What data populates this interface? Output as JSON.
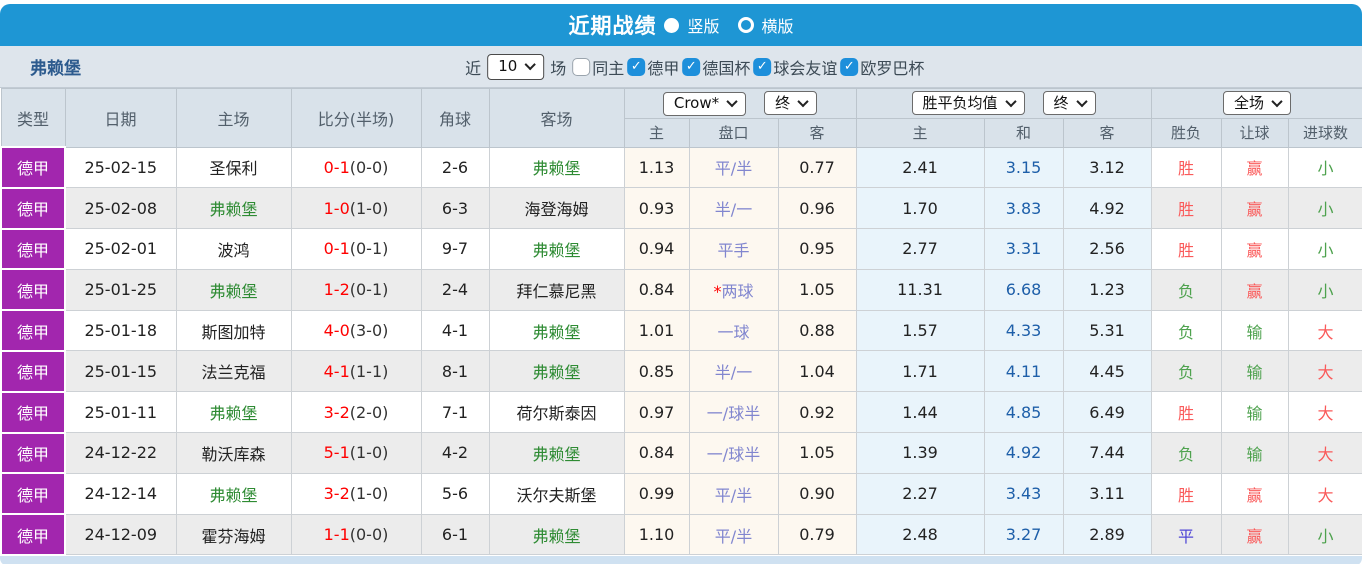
{
  "title_bar": {
    "title": "近期战绩",
    "radio_vertical": "竖版",
    "radio_horizontal": "横版",
    "vertical_selected": true
  },
  "filter_bar": {
    "team": "弗赖堡",
    "recent_label": "近",
    "recent_value": "10",
    "games_label": "场",
    "checkboxes": [
      {
        "key": "same-home",
        "label": "同主",
        "checked": false
      },
      {
        "key": "bundesliga",
        "label": "德甲",
        "checked": true
      },
      {
        "key": "dfb-pokal",
        "label": "德国杯",
        "checked": true
      },
      {
        "key": "club-friendly",
        "label": "球会友谊",
        "checked": true
      },
      {
        "key": "europa-league",
        "label": "欧罗巴杯",
        "checked": true
      }
    ]
  },
  "table": {
    "dropdowns": {
      "company": "Crow*",
      "final1": "终",
      "avg": "胜平负均值",
      "final2": "终",
      "scope": "全场"
    },
    "columns": [
      "类型",
      "日期",
      "主场",
      "比分(半场)",
      "角球",
      "客场"
    ],
    "sub_columns": [
      "主",
      "盘口",
      "客",
      "主",
      "和",
      "客",
      "胜负",
      "让球",
      "进球数"
    ],
    "rows": [
      {
        "league": "德甲",
        "date": "25-02-15",
        "home": "圣保利",
        "score": "0-1",
        "half": "(0-0)",
        "corners": "2-6",
        "away": "弗赖堡",
        "home_odds": "1.13",
        "handicap": "平/半",
        "away_odds": "0.77",
        "avg_win": "2.41",
        "avg_draw": "3.15",
        "avg_lose": "3.12",
        "wdl": "胜",
        "handicap_result": "赢",
        "goals": "小"
      },
      {
        "league": "德甲",
        "date": "25-02-08",
        "home": "弗赖堡",
        "score": "1-0",
        "half": "(1-0)",
        "corners": "6-3",
        "away": "海登海姆",
        "home_odds": "0.93",
        "handicap": "半/一",
        "away_odds": "0.96",
        "avg_win": "1.70",
        "avg_draw": "3.83",
        "avg_lose": "4.92",
        "wdl": "胜",
        "handicap_result": "赢",
        "goals": "小"
      },
      {
        "league": "德甲",
        "date": "25-02-01",
        "home": "波鸿",
        "score": "0-1",
        "half": "(0-1)",
        "corners": "9-7",
        "away": "弗赖堡",
        "home_odds": "0.94",
        "handicap": "平手",
        "away_odds": "0.95",
        "avg_win": "2.77",
        "avg_draw": "3.31",
        "avg_lose": "2.56",
        "wdl": "胜",
        "handicap_result": "赢",
        "goals": "小"
      },
      {
        "league": "德甲",
        "date": "25-01-25",
        "home": "弗赖堡",
        "score": "1-2",
        "half": "(0-1)",
        "corners": "2-4",
        "away": "拜仁慕尼黑",
        "home_odds": "0.84",
        "handicap": "*两球",
        "away_odds": "1.05",
        "avg_win": "11.31",
        "avg_draw": "6.68",
        "avg_lose": "1.23",
        "wdl": "负",
        "handicap_result": "赢",
        "goals": "小"
      },
      {
        "league": "德甲",
        "date": "25-01-18",
        "home": "斯图加特",
        "score": "4-0",
        "half": "(3-0)",
        "corners": "4-1",
        "away": "弗赖堡",
        "home_odds": "1.01",
        "handicap": "一球",
        "away_odds": "0.88",
        "avg_win": "1.57",
        "avg_draw": "4.33",
        "avg_lose": "5.31",
        "wdl": "负",
        "handicap_result": "输",
        "goals": "大"
      },
      {
        "league": "德甲",
        "date": "25-01-15",
        "home": "法兰克福",
        "score": "4-1",
        "half": "(1-1)",
        "corners": "8-1",
        "away": "弗赖堡",
        "home_odds": "0.85",
        "handicap": "半/一",
        "away_odds": "1.04",
        "avg_win": "1.71",
        "avg_draw": "4.11",
        "avg_lose": "4.45",
        "wdl": "负",
        "handicap_result": "输",
        "goals": "大"
      },
      {
        "league": "德甲",
        "date": "25-01-11",
        "home": "弗赖堡",
        "score": "3-2",
        "half": "(2-0)",
        "corners": "7-1",
        "away": "荷尔斯泰因",
        "home_odds": "0.97",
        "handicap": "一/球半",
        "away_odds": "0.92",
        "avg_win": "1.44",
        "avg_draw": "4.85",
        "avg_lose": "6.49",
        "wdl": "胜",
        "handicap_result": "输",
        "goals": "大"
      },
      {
        "league": "德甲",
        "date": "24-12-22",
        "home": "勒沃库森",
        "score": "5-1",
        "half": "(1-0)",
        "corners": "4-2",
        "away": "弗赖堡",
        "home_odds": "0.84",
        "handicap": "一/球半",
        "away_odds": "1.05",
        "avg_win": "1.39",
        "avg_draw": "4.92",
        "avg_lose": "7.44",
        "wdl": "负",
        "handicap_result": "输",
        "goals": "大"
      },
      {
        "league": "德甲",
        "date": "24-12-14",
        "home": "弗赖堡",
        "score": "3-2",
        "half": "(1-0)",
        "corners": "5-6",
        "away": "沃尔夫斯堡",
        "home_odds": "0.99",
        "handicap": "平/半",
        "away_odds": "0.90",
        "avg_win": "2.27",
        "avg_draw": "3.43",
        "avg_lose": "3.11",
        "wdl": "胜",
        "handicap_result": "赢",
        "goals": "大"
      },
      {
        "league": "德甲",
        "date": "24-12-09",
        "home": "霍芬海姆",
        "score": "1-1",
        "half": "(0-0)",
        "corners": "6-1",
        "away": "弗赖堡",
        "home_odds": "1.10",
        "handicap": "平/半",
        "away_odds": "0.79",
        "avg_win": "2.48",
        "avg_draw": "3.27",
        "avg_lose": "2.89",
        "wdl": "平",
        "handicap_result": "赢",
        "goals": "小"
      }
    ]
  }
}
